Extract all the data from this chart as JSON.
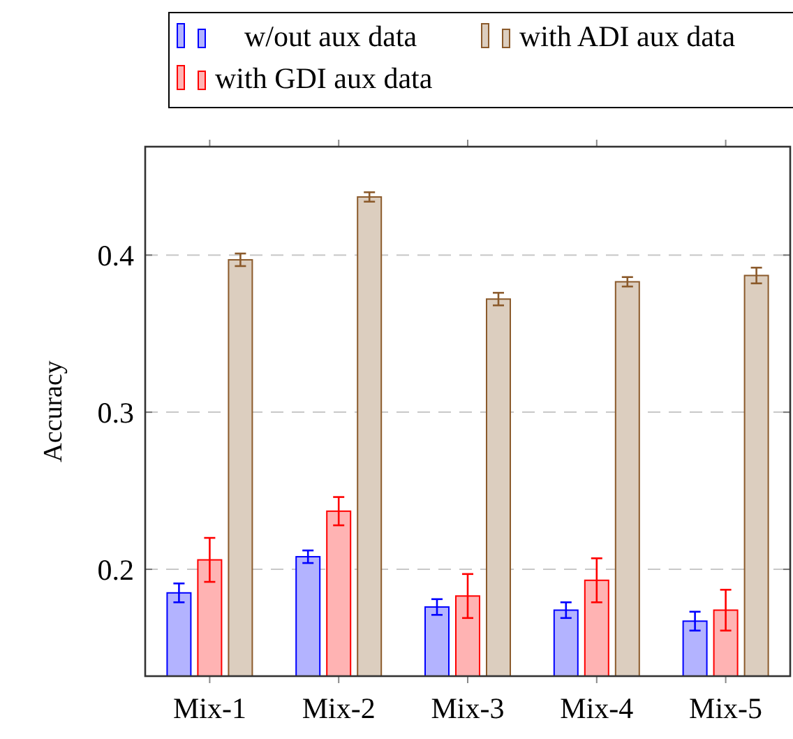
{
  "chart_data": {
    "type": "bar",
    "ylabel": "Accuracy",
    "categories": [
      "Mix-1",
      "Mix-2",
      "Mix-3",
      "Mix-4",
      "Mix-5"
    ],
    "series": [
      {
        "name": "w/out aux data",
        "color": "#0000ff",
        "values": [
          0.185,
          0.208,
          0.176,
          0.174,
          0.167
        ],
        "errors": [
          0.006,
          0.004,
          0.005,
          0.005,
          0.006
        ]
      },
      {
        "name": "with GDI aux data",
        "color": "#ff0000",
        "values": [
          0.206,
          0.237,
          0.183,
          0.193,
          0.174
        ],
        "errors": [
          0.014,
          0.009,
          0.014,
          0.014,
          0.013
        ]
      },
      {
        "name": "with ADI aux data",
        "color": "#8b5a2b",
        "values": [
          0.397,
          0.437,
          0.372,
          0.383,
          0.387
        ],
        "errors": [
          0.004,
          0.003,
          0.004,
          0.003,
          0.005
        ]
      }
    ],
    "ylim": [
      0.132,
      0.469
    ],
    "yticks": [
      0.2,
      0.3,
      0.4
    ],
    "grid": "y",
    "legend": "top"
  }
}
